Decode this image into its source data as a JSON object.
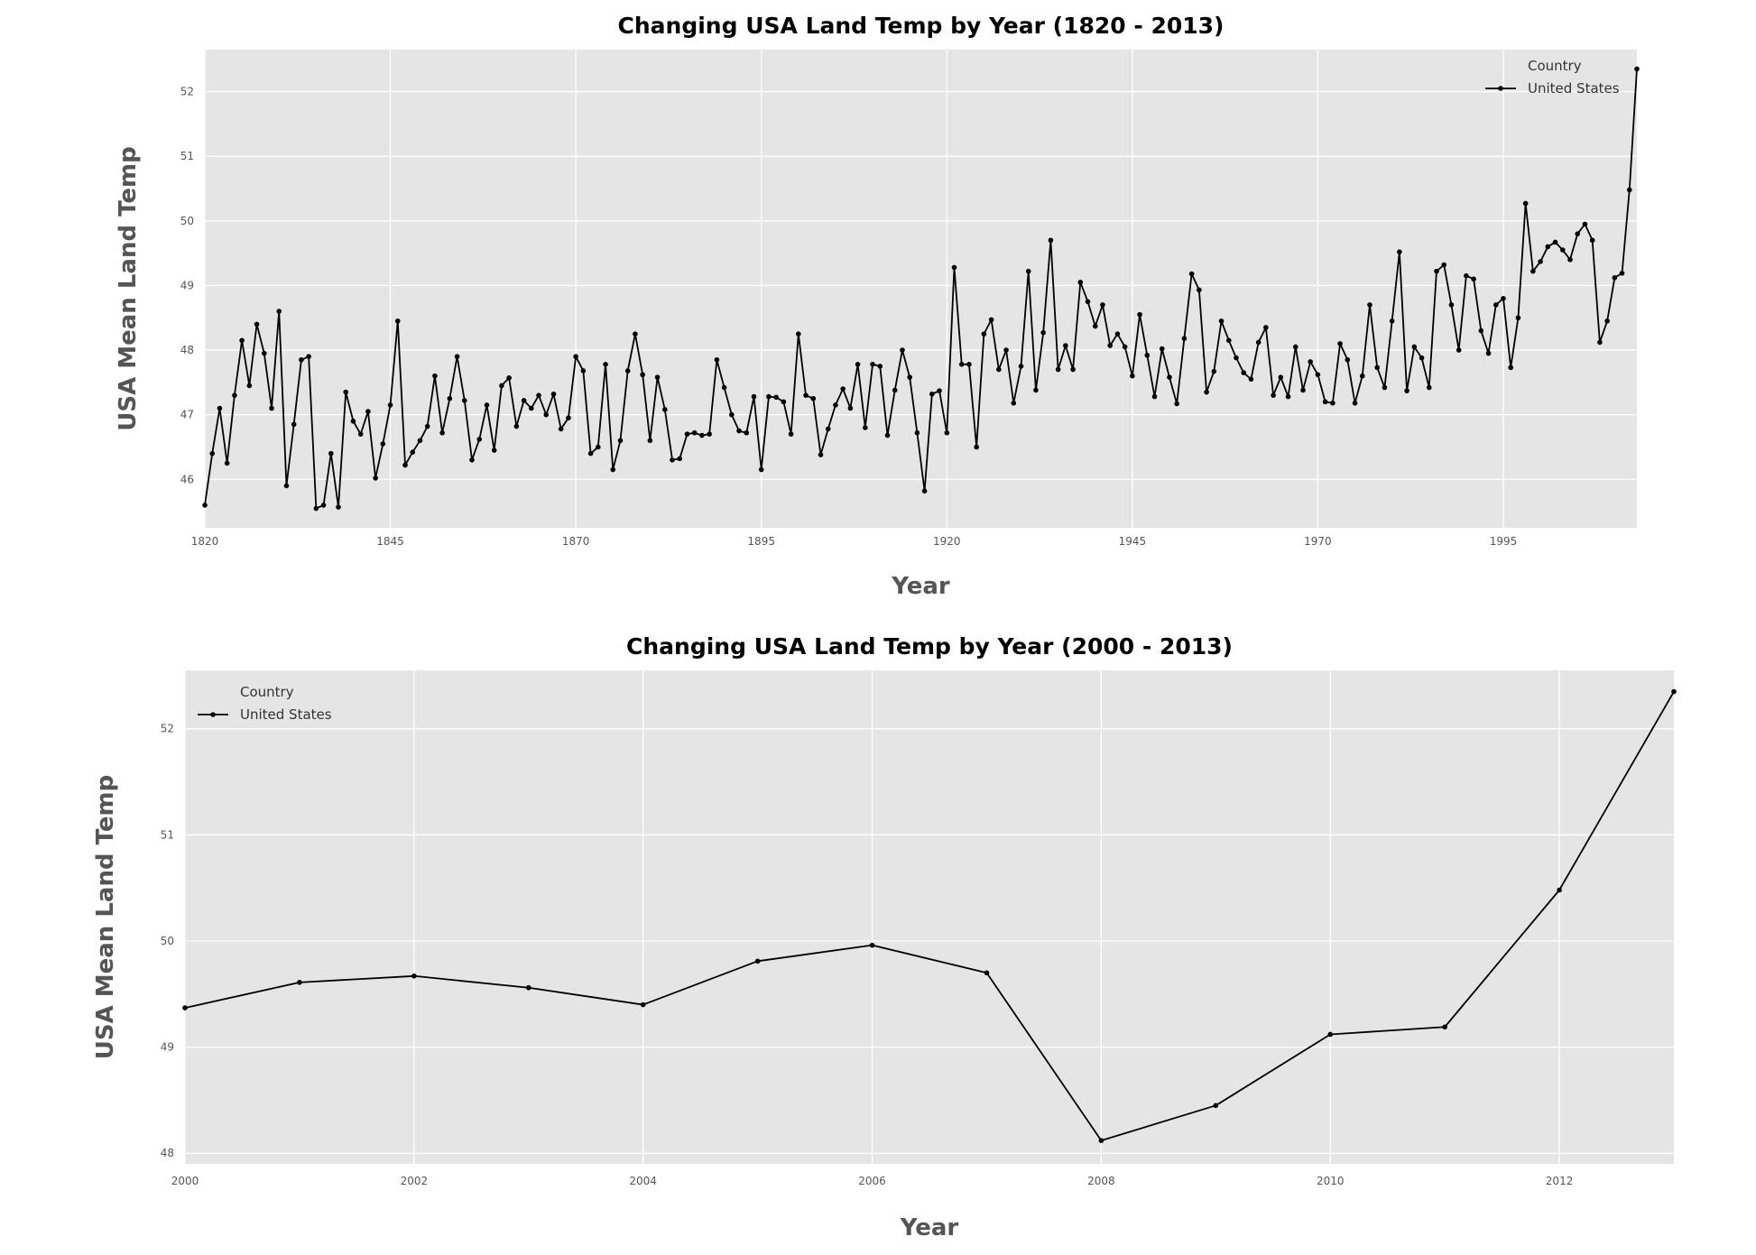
{
  "chart_data": [
    {
      "type": "line",
      "title": "Changing USA Land Temp by Year (1820 - 2013)",
      "xlabel": "Year",
      "ylabel": "USA Mean Land Temp",
      "xlim": [
        1820,
        2013
      ],
      "ylim": [
        45.25,
        52.65
      ],
      "xticks": [
        1820,
        1845,
        1870,
        1895,
        1920,
        1945,
        1970,
        1995
      ],
      "yticks": [
        46,
        47,
        48,
        49,
        50,
        51,
        52
      ],
      "grid": true,
      "legend": {
        "title": "Country",
        "placement": "top-right",
        "entries": [
          "United States"
        ]
      },
      "categories": [
        1820,
        1821,
        1822,
        1823,
        1824,
        1825,
        1826,
        1827,
        1828,
        1829,
        1830,
        1831,
        1832,
        1833,
        1834,
        1835,
        1836,
        1837,
        1838,
        1839,
        1840,
        1841,
        1842,
        1843,
        1844,
        1845,
        1846,
        1847,
        1848,
        1849,
        1850,
        1851,
        1852,
        1853,
        1854,
        1855,
        1856,
        1857,
        1858,
        1859,
        1860,
        1861,
        1862,
        1863,
        1864,
        1865,
        1866,
        1867,
        1868,
        1869,
        1870,
        1871,
        1872,
        1873,
        1874,
        1875,
        1876,
        1877,
        1878,
        1879,
        1880,
        1881,
        1882,
        1883,
        1884,
        1885,
        1886,
        1887,
        1888,
        1889,
        1890,
        1891,
        1892,
        1893,
        1894,
        1895,
        1896,
        1897,
        1898,
        1899,
        1900,
        1901,
        1902,
        1903,
        1904,
        1905,
        1906,
        1907,
        1908,
        1909,
        1910,
        1911,
        1912,
        1913,
        1914,
        1915,
        1916,
        1917,
        1918,
        1919,
        1920,
        1921,
        1922,
        1923,
        1924,
        1925,
        1926,
        1927,
        1928,
        1929,
        1930,
        1931,
        1932,
        1933,
        1934,
        1935,
        1936,
        1937,
        1938,
        1939,
        1940,
        1941,
        1942,
        1943,
        1944,
        1945,
        1946,
        1947,
        1948,
        1949,
        1950,
        1951,
        1952,
        1953,
        1954,
        1955,
        1956,
        1957,
        1958,
        1959,
        1960,
        1961,
        1962,
        1963,
        1964,
        1965,
        1966,
        1967,
        1968,
        1969,
        1970,
        1971,
        1972,
        1973,
        1974,
        1975,
        1976,
        1977,
        1978,
        1979,
        1980,
        1981,
        1982,
        1983,
        1984,
        1985,
        1986,
        1987,
        1988,
        1989,
        1990,
        1991,
        1992,
        1993,
        1994,
        1995,
        1996,
        1997,
        1998,
        1999,
        2000,
        2001,
        2002,
        2003,
        2004,
        2005,
        2006,
        2007,
        2008,
        2009,
        2010,
        2011,
        2012,
        2013
      ],
      "series": [
        {
          "name": "United States",
          "color": "#000000",
          "values": [
            45.6,
            46.4,
            47.1,
            46.25,
            47.3,
            48.15,
            47.45,
            48.4,
            47.95,
            47.1,
            48.6,
            45.9,
            46.85,
            47.85,
            47.9,
            45.55,
            45.6,
            46.4,
            45.57,
            47.35,
            46.9,
            46.7,
            47.05,
            46.02,
            46.55,
            47.15,
            48.45,
            46.22,
            46.42,
            46.6,
            46.82,
            47.6,
            46.72,
            47.25,
            47.9,
            47.22,
            46.3,
            46.62,
            47.15,
            46.45,
            47.45,
            47.57,
            46.82,
            47.22,
            47.1,
            47.3,
            47.0,
            47.32,
            46.78,
            46.95,
            47.9,
            47.68,
            46.4,
            46.5,
            47.78,
            46.15,
            46.6,
            47.68,
            48.25,
            47.62,
            46.6,
            47.58,
            47.08,
            46.3,
            46.32,
            46.7,
            46.72,
            46.68,
            46.7,
            47.85,
            47.42,
            47.0,
            46.75,
            46.72,
            47.28,
            46.15,
            47.28,
            47.27,
            47.2,
            46.7,
            48.25,
            47.3,
            47.25,
            46.38,
            46.78,
            47.15,
            47.4,
            47.1,
            47.78,
            46.8,
            47.78,
            47.75,
            46.68,
            47.38,
            48.0,
            47.58,
            46.72,
            45.82,
            47.32,
            47.37,
            46.72,
            49.28,
            47.78,
            47.78,
            46.5,
            48.25,
            48.47,
            47.7,
            48.0,
            47.18,
            47.75,
            49.22,
            47.38,
            48.27,
            49.7,
            47.7,
            48.07,
            47.7,
            49.05,
            48.75,
            48.37,
            48.7,
            48.07,
            48.25,
            48.05,
            47.6,
            48.55,
            47.92,
            47.28,
            48.02,
            47.58,
            47.17,
            48.18,
            49.18,
            48.93,
            47.35,
            47.67,
            48.45,
            48.15,
            47.88,
            47.65,
            47.55,
            48.12,
            48.35,
            47.3,
            47.58,
            47.28,
            48.05,
            47.38,
            47.82,
            47.62,
            47.2,
            47.18,
            48.1,
            47.85,
            47.18,
            47.6,
            48.7,
            47.73,
            47.42,
            48.45,
            49.52,
            47.37,
            48.05,
            47.88,
            47.42,
            49.22,
            49.32,
            48.7,
            48.0,
            49.15,
            49.1,
            48.3,
            47.95,
            48.7,
            48.8,
            47.73,
            48.5,
            50.27,
            49.22,
            49.37,
            49.6,
            49.67,
            49.55,
            49.4,
            49.8,
            49.95,
            49.7,
            48.12,
            48.45,
            49.12,
            49.19,
            50.48,
            52.35
          ]
        }
      ]
    },
    {
      "type": "line",
      "title": "Changing USA Land Temp by Year (2000 - 2013)",
      "xlabel": "Year",
      "ylabel": "USA Mean Land Temp",
      "xlim": [
        2000,
        2013
      ],
      "ylim": [
        47.9,
        52.55
      ],
      "xticks": [
        2000,
        2002,
        2004,
        2006,
        2008,
        2010,
        2012
      ],
      "yticks": [
        48,
        49,
        50,
        51,
        52
      ],
      "grid": true,
      "legend": {
        "title": "Country",
        "placement": "top-left",
        "entries": [
          "United States"
        ]
      },
      "categories": [
        2000,
        2001,
        2002,
        2003,
        2004,
        2005,
        2006,
        2007,
        2008,
        2009,
        2010,
        2011,
        2012,
        2013
      ],
      "series": [
        {
          "name": "United States",
          "color": "#000000",
          "values": [
            49.37,
            49.61,
            49.67,
            49.56,
            49.4,
            49.81,
            49.96,
            49.7,
            48.12,
            48.45,
            49.12,
            49.19,
            50.48,
            52.35
          ]
        }
      ]
    }
  ]
}
